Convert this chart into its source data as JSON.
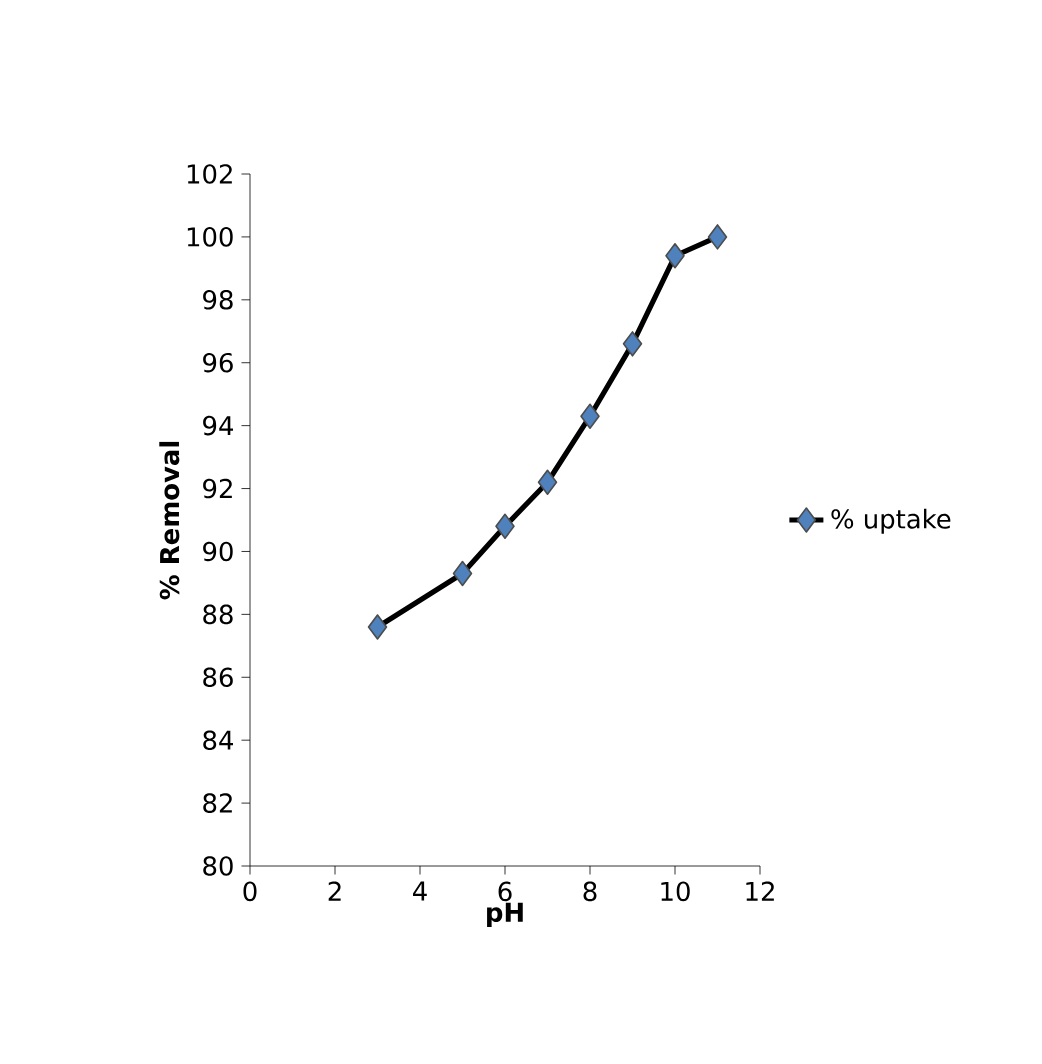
{
  "chart_data": {
    "type": "line",
    "xlabel": "pH",
    "ylabel": "% Removal",
    "x": [
      3,
      5,
      6,
      7,
      8,
      9,
      10,
      11
    ],
    "series": [
      {
        "name": "% uptake",
        "color": "#4f81bd",
        "values": [
          87.6,
          89.3,
          90.8,
          92.2,
          94.3,
          96.6,
          99.4,
          100.0
        ]
      }
    ],
    "xlim": [
      0,
      12
    ],
    "xticks": [
      0,
      2,
      4,
      6,
      8,
      10,
      12
    ],
    "ylim": [
      80,
      102
    ],
    "yticks": [
      80,
      82,
      84,
      86,
      88,
      90,
      92,
      94,
      96,
      98,
      100,
      102
    ],
    "grid": false,
    "legend": "right",
    "marker": "diamond",
    "line_style": "solid"
  }
}
